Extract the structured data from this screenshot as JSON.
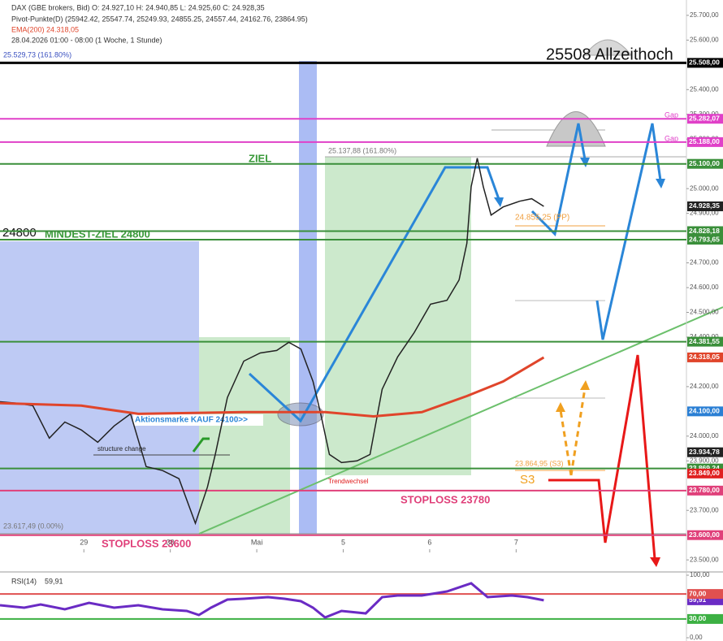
{
  "chart_data": [
    {
      "type": "line",
      "info": [
        "DAX (GBE brokers, Bid)  O: 24.927,10  H: 24.940,85  L: 24.925,60  C: 24.928,35",
        "Pivot-Punkte(D) (25942.42, 25547.74, 25249.93, 24855.25, 24557.44, 24162.76, 23864.95)",
        "EMA(200)  24.318,05",
        "28.04.2026 01:00 - 08:00  (1 Woche, 1 Stunde)"
      ],
      "xlim": [
        0.03,
        7.97
      ],
      "xticks": [
        {
          "value": 1,
          "label": "29"
        },
        {
          "value": 2,
          "label": "30"
        },
        {
          "value": 3,
          "label": "Mai"
        },
        {
          "value": 4,
          "label": "5"
        },
        {
          "value": 5,
          "label": "6"
        },
        {
          "value": 6,
          "label": "7"
        }
      ],
      "ylim": [
        23448,
        25762
      ],
      "yticks": [
        {
          "value": 25700,
          "label": "25.700,00"
        },
        {
          "value": 25600,
          "label": "25.600,00"
        },
        {
          "value": 25400,
          "label": "25.400,00"
        },
        {
          "value": 25300,
          "label": "25.300,00"
        },
        {
          "value": 25200,
          "label": "25.200,00"
        },
        {
          "value": 25000,
          "label": "25.000,00"
        },
        {
          "value": 24900,
          "label": "24.900,00"
        },
        {
          "value": 24700,
          "label": "24.700,00"
        },
        {
          "value": 24600,
          "label": "24.600,00"
        },
        {
          "value": 24500,
          "label": "24.500,00"
        },
        {
          "value": 24400,
          "label": "24.400,00"
        },
        {
          "value": 24200,
          "label": "24.200,00"
        },
        {
          "value": 24000,
          "label": "24.000,00"
        },
        {
          "value": 23900,
          "label": "23.900,00"
        },
        {
          "value": 23700,
          "label": "23.700,00"
        },
        {
          "value": 23500,
          "label": "23.500,00"
        }
      ],
      "series": [
        {
          "color": "#222222",
          "x": [
            0.03,
            0.22,
            0.41,
            0.6,
            0.78,
            0.97,
            1.16,
            1.35,
            1.54,
            1.72,
            1.91,
            2.1,
            2.29,
            2.43,
            2.52,
            2.66,
            2.85,
            3.04,
            3.23,
            3.37,
            3.51,
            3.65,
            3.74,
            3.84,
            3.98,
            4.16,
            4.31,
            4.45,
            4.63,
            4.82,
            5.01,
            5.2,
            5.34,
            5.43,
            5.48,
            5.55,
            5.62,
            5.71,
            5.85,
            6.04,
            6.18,
            6.32
          ],
          "values": [
            24139,
            24133,
            24123,
            23992,
            24057,
            24025,
            23975,
            24041,
            24090,
            23877,
            23861,
            23828,
            23648,
            23795,
            23926,
            24156,
            24303,
            24336,
            24346,
            24379,
            24352,
            24221,
            24090,
            23926,
            23893,
            23900,
            23926,
            24189,
            24320,
            24418,
            24533,
            24549,
            24631,
            24779,
            25008,
            25123,
            25008,
            24893,
            24926,
            24949,
            24959,
            24928.35
          ]
        },
        {
          "color": "#e0452b",
          "x": [
            0.03,
            0.97,
            1.63,
            2.85,
            3.79,
            4.35,
            4.91,
            5.43,
            5.85,
            6.32
          ],
          "values": [
            24133,
            24123,
            24090,
            24097,
            24097,
            24080,
            24097,
            24162,
            24221,
            24318.05
          ]
        }
      ],
      "levels": [
        {
          "value": 25508,
          "label": "25.508,00",
          "color": "#000000",
          "line": true
        },
        {
          "value": 25282.07,
          "label": "25.282,07",
          "color": "#e040c8",
          "line": true
        },
        {
          "value": 25188,
          "label": "25.188,00",
          "color": "#e040c8",
          "line": true
        },
        {
          "value": 25100,
          "label": "25.100,00",
          "color": "#3a8f3a",
          "line": true
        },
        {
          "value": 24928.35,
          "label": "24.928,35",
          "color": "#222222",
          "line": false
        },
        {
          "value": 24828.18,
          "label": "24.828,18",
          "color": "#3a8f3a",
          "line": true
        },
        {
          "value": 24793.65,
          "label": "24.793,65",
          "color": "#3a8f3a",
          "line": true
        },
        {
          "value": 24381.55,
          "label": "24.381,55",
          "color": "#3a8f3a",
          "line": true
        },
        {
          "value": 24318.05,
          "label": "24.318,05",
          "color": "#e0452b",
          "line": false
        },
        {
          "value": 24100,
          "label": "24.100,00",
          "color": "#2a7fd4",
          "line": false
        },
        {
          "value": 23934.78,
          "label": "23.934,78",
          "color": "#222222",
          "line": false
        },
        {
          "value": 23869.24,
          "label": "23.869,24",
          "color": "#3a8f3a",
          "line": true
        },
        {
          "value": 23849,
          "label": "23.849,00",
          "color": "#e02020",
          "line": false
        },
        {
          "value": 23780,
          "label": "23.780,00",
          "color": "#e0407a",
          "line": true
        },
        {
          "value": 23600,
          "label": "23.600,00",
          "color": "#e0407a",
          "line": true
        }
      ],
      "annotations": [
        "25508 Allzeithoch",
        "ZIEL",
        "MINDEST-ZIEL 24800",
        "24800",
        "Gap",
        "Gap",
        "25.137,88 (161.80%)",
        "24.855,25 (PP)",
        "Aktionsmarke KAUF 24100>>",
        "structure change",
        "23.864,95 (S3)",
        "S3",
        "STOPLOSS 23780",
        "STOPLOSS 23600",
        "Trendwechsel",
        "23.617,49 (0.00%)",
        "25.529,73 (161.80%)"
      ]
    },
    {
      "type": "line",
      "xlim": [
        0.03,
        7.97
      ],
      "ylim": [
        -5.2,
        103.9
      ],
      "yticks": [
        {
          "value": 100,
          "label": "100,00"
        },
        {
          "value": 0,
          "label": "0,00"
        }
      ],
      "series": [
        {
          "name": "RSI(14)",
          "color": "#6a2bc4",
          "x": [
            0.03,
            0.31,
            0.5,
            0.78,
            1.06,
            1.35,
            1.63,
            1.91,
            2.19,
            2.33,
            2.47,
            2.66,
            2.85,
            3.13,
            3.32,
            3.51,
            3.65,
            3.79,
            3.98,
            4.26,
            4.45,
            4.63,
            4.91,
            5.2,
            5.48,
            5.67,
            5.95,
            6.13,
            6.32
          ],
          "values": [
            51.9,
            48.1,
            53.2,
            45.5,
            55.8,
            48.1,
            51.9,
            45.5,
            42.9,
            36.4,
            48.1,
            61.0,
            62.3,
            64.9,
            62.3,
            58.4,
            48.1,
            32.5,
            42.9,
            39.0,
            64.9,
            67.5,
            67.5,
            74.0,
            87.0,
            64.9,
            67.5,
            64.9,
            59.91
          ]
        }
      ],
      "levels": [
        {
          "value": 59.91,
          "label": "59,91",
          "color": "#6a2bc4",
          "line": false
        },
        {
          "value": 70,
          "label": "70,00",
          "color": "#e05050",
          "line": true
        },
        {
          "value": 30,
          "label": "30,00",
          "color": "#3cb043",
          "line": true
        }
      ]
    }
  ]
}
